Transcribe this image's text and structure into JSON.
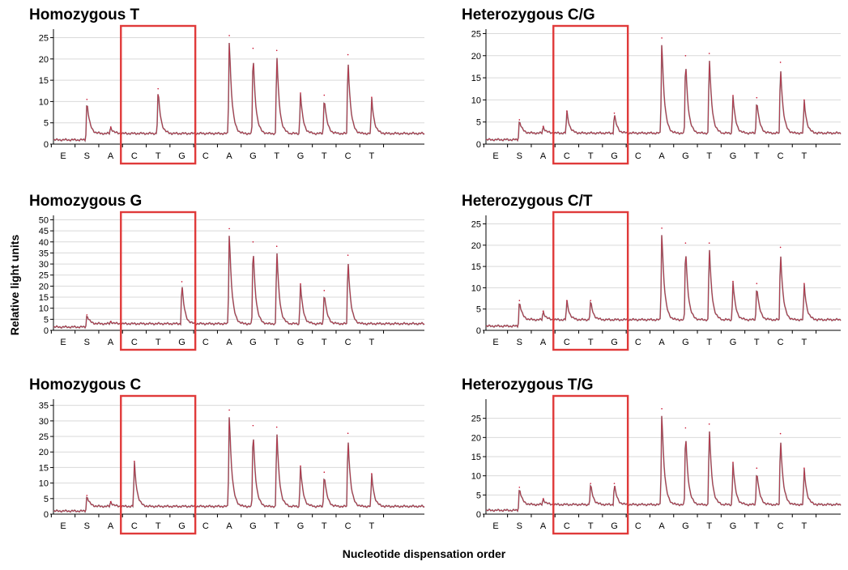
{
  "y_axis_label": "Relative light units",
  "x_axis_label": "Nucleotide dispensation order",
  "colors": {
    "trace": "#888888",
    "overlay": "#c8102e",
    "highlight_box": "#e03a3a",
    "grid": "#d9d9d9"
  },
  "chart_data": [
    {
      "type": "line",
      "title": "Homozygous T",
      "categories": [
        "E",
        "S",
        "A",
        "C",
        "T",
        "G",
        "C",
        "A",
        "G",
        "T",
        "G",
        "T",
        "C",
        "T"
      ],
      "ylim": [
        0,
        27
      ],
      "yticks": [
        0,
        5,
        10,
        15,
        20,
        25
      ],
      "baseline_start": 1.0,
      "baseline": 2.5,
      "peaks": [
        0,
        10.5,
        4,
        0,
        13,
        0,
        0,
        25.5,
        22.5,
        22,
        12,
        11.5,
        21,
        11
      ],
      "highlight": [
        "C",
        "T",
        "G"
      ]
    },
    {
      "type": "line",
      "title": "Heterozygous C/G",
      "categories": [
        "E",
        "S",
        "A",
        "C",
        "T",
        "G",
        "C",
        "A",
        "G",
        "T",
        "G",
        "T",
        "C",
        "T"
      ],
      "ylim": [
        0,
        26
      ],
      "yticks": [
        0,
        5,
        10,
        15,
        20,
        25
      ],
      "baseline_start": 1.0,
      "baseline": 2.5,
      "peaks": [
        0,
        5.5,
        4,
        7.5,
        0,
        7,
        0,
        24,
        20,
        20.5,
        11,
        10.5,
        18.5,
        10
      ],
      "highlight": [
        "C",
        "T",
        "G"
      ]
    },
    {
      "type": "line",
      "title": "Homozygous G",
      "categories": [
        "E",
        "S",
        "A",
        "C",
        "T",
        "G",
        "C",
        "A",
        "G",
        "T",
        "G",
        "T",
        "C",
        "T"
      ],
      "ylim": [
        0,
        52
      ],
      "yticks": [
        0,
        5,
        10,
        15,
        20,
        25,
        30,
        35,
        40,
        45,
        50
      ],
      "baseline_start": 1.5,
      "baseline": 3,
      "peaks": [
        0,
        7,
        4,
        0,
        0,
        22,
        0,
        46,
        40,
        38,
        21,
        18,
        34,
        0
      ],
      "highlight": [
        "C",
        "T",
        "G"
      ]
    },
    {
      "type": "line",
      "title": "Heterozygous C/T",
      "categories": [
        "E",
        "S",
        "A",
        "C",
        "T",
        "G",
        "C",
        "A",
        "G",
        "T",
        "G",
        "T",
        "C",
        "T"
      ],
      "ylim": [
        0,
        27
      ],
      "yticks": [
        0,
        5,
        10,
        15,
        20,
        25
      ],
      "baseline_start": 1.0,
      "baseline": 2.5,
      "peaks": [
        0,
        7,
        4.5,
        7,
        7,
        0,
        0,
        24,
        20.5,
        20.5,
        11.5,
        11,
        19.5,
        11
      ],
      "highlight": [
        "C",
        "T",
        "G"
      ]
    },
    {
      "type": "line",
      "title": "Homozygous C",
      "categories": [
        "E",
        "S",
        "A",
        "C",
        "T",
        "G",
        "C",
        "A",
        "G",
        "T",
        "G",
        "T",
        "C",
        "T"
      ],
      "ylim": [
        0,
        37
      ],
      "yticks": [
        0,
        5,
        10,
        15,
        20,
        25,
        30,
        35
      ],
      "baseline_start": 1.0,
      "baseline": 2.5,
      "peaks": [
        0,
        6,
        4,
        17,
        0,
        0,
        0,
        33.5,
        28.5,
        28,
        15.5,
        13.5,
        26,
        13
      ],
      "highlight": [
        "C",
        "T",
        "G"
      ]
    },
    {
      "type": "line",
      "title": "Heterozygous T/G",
      "categories": [
        "E",
        "S",
        "A",
        "C",
        "T",
        "G",
        "C",
        "A",
        "G",
        "T",
        "G",
        "T",
        "C",
        "T"
      ],
      "ylim": [
        0,
        30
      ],
      "yticks": [
        0,
        5,
        10,
        15,
        20,
        25
      ],
      "baseline_start": 1.0,
      "baseline": 2.5,
      "peaks": [
        0,
        7,
        4,
        0,
        8,
        8,
        0,
        27.5,
        22.5,
        23.5,
        13.5,
        12,
        21,
        12
      ],
      "highlight": [
        "C",
        "T",
        "G"
      ]
    }
  ]
}
